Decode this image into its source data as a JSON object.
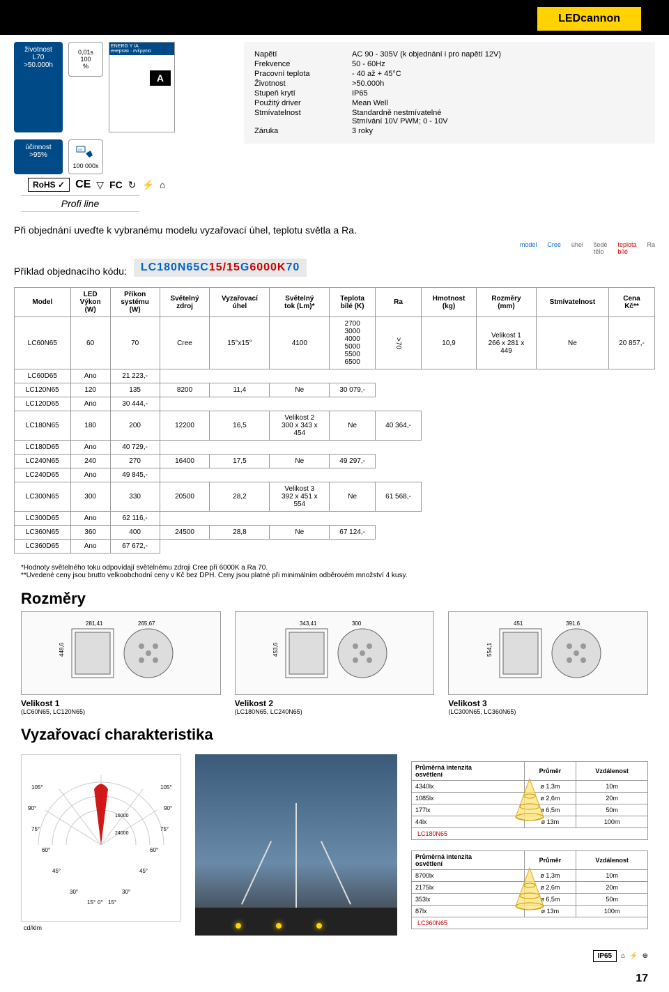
{
  "header": {
    "title": "LEDcannon"
  },
  "badges": {
    "life_label": "životnost\nL70\n>50.000h",
    "eff_label": "účinnost\n>95%",
    "speed_label": "0,01s\n100\n%",
    "cycles_label": "100 000x"
  },
  "energy": {
    "top": "ENERG Y IA\nенергия · ενέργεια",
    "class": "A"
  },
  "specs": [
    {
      "label": "Napětí",
      "value": "AC 90 - 305V (k objednání i pro napětí 12V)"
    },
    {
      "label": "Frekvence",
      "value": "50 - 60Hz"
    },
    {
      "label": "Pracovní teplota",
      "value": "- 40 až + 45°C"
    },
    {
      "label": "Životnost",
      "value": ">50.000h"
    },
    {
      "label": "Stupeň krytí",
      "value": "IP65"
    },
    {
      "label": "Použitý driver",
      "value": "Mean Well"
    },
    {
      "label": "Stmívatelnost",
      "value": "Standardně nestmívatelné\nStmívání 10V PWM; 0 - 10V"
    },
    {
      "label": "Záruka",
      "value": "3 roky"
    }
  ],
  "note": "Při objednání uveďte k vybranému modelu vyzařovací úhel, teplotu světla a Ra.",
  "order_label": "Příklad objednacího kódu:",
  "order_code": {
    "p1": "LC180N65C",
    "p2": "15/15",
    "p3": "G",
    "p4": "6000K",
    "p5": "70"
  },
  "legend": [
    "model",
    "Cree",
    "úhel",
    "šedé\ntělo",
    "teplota\nbílé",
    "Ra"
  ],
  "profi": "Profi line",
  "certs": [
    "RoHS ✓",
    "CE",
    "▽",
    "FC",
    "↻",
    "⚡",
    "⌂"
  ],
  "table": {
    "headers": [
      "Model",
      "LED\nVýkon\n(W)",
      "Příkon\nsystému\n(W)",
      "Světelný\nzdroj",
      "Vyzařovací\núhel",
      "Světelný\ntok (Lm)*",
      "Teplota\nbílé (K)",
      "Ra",
      "Hmotnost\n(kg)",
      "Rozměry\n(mm)",
      "Stmívatelnost",
      "Cena\nKč**"
    ],
    "models": [
      "LC60N65",
      "LC60D65",
      "LC120N65",
      "LC120D65",
      "LC180N65",
      "LC180D65",
      "LC240N65",
      "LC240D65",
      "LC300N65",
      "LC300D65",
      "LC360N65",
      "LC360D65"
    ],
    "watt_pairs": [
      [
        "60",
        "70"
      ],
      [
        "120",
        "135"
      ],
      [
        "180",
        "200"
      ],
      [
        "240",
        "270"
      ],
      [
        "300",
        "330"
      ],
      [
        "360",
        "400"
      ]
    ],
    "zdroj": "Cree",
    "uhel": "15°x15°",
    "lumens": [
      "4100",
      "8200",
      "12200",
      "16400",
      "20500",
      "24500"
    ],
    "teplota": "2700\n3000\n4000\n5000\n5500\n6500",
    "ra": ">70",
    "weights": [
      "10,9",
      "11,4",
      "16,5",
      "17,5",
      "28,2",
      "28,8"
    ],
    "sizes": [
      "Velikost 1\n266 x 281 x\n449",
      "Velikost 2\n300 x 343 x\n454",
      "Velikost 3\n392 x 451 x\n554"
    ],
    "dim_alt": [
      "Ne",
      "Ano"
    ],
    "prices": [
      "20 857,-",
      "21 223,-",
      "30 079,-",
      "30 444,-",
      "40 364,-",
      "40 729,-",
      "49 297,-",
      "49 845,-",
      "61 568,-",
      "62 116,-",
      "67 124,-",
      "67 672,-"
    ]
  },
  "notes_text": [
    "*Hodnoty světelného toku odpovídají světelnému zdroji Cree při 6000K a Ra 70.",
    "**Uvedené ceny jsou brutto velkoobchodní ceny v Kč bez DPH. Ceny jsou platné při minimálním odběrovém množství 4 kusy."
  ],
  "h2_dims": "Rozměry",
  "dims": [
    {
      "w": "281,41",
      "h": "448,6",
      "d": "265,67"
    },
    {
      "w": "343,41",
      "h": "453,6",
      "d": "300"
    },
    {
      "w": "451",
      "h": "554,1",
      "d": "391,6"
    }
  ],
  "sizes": [
    {
      "title": "Velikost 1",
      "sub": "(LC60N65, LC120N65)"
    },
    {
      "title": "Velikost 2",
      "sub": "(LC180N65, LC240N65)"
    },
    {
      "title": "Velikost 3",
      "sub": "(LC300N65, LC360N65)"
    }
  ],
  "h2_char": "Vyzařovací charakteristika",
  "polar": {
    "angles": [
      "105°",
      "90°",
      "75°",
      "60°",
      "45°",
      "30°",
      "15°",
      "0°"
    ],
    "rings": [
      "16000",
      "24000"
    ],
    "unit": "cd/klm"
  },
  "intensity_tables": [
    {
      "headers": [
        "Průměrná intenzita\nosvětlení",
        "Průměr",
        "Vzdálenost"
      ],
      "rows": [
        [
          "4340lx",
          "ø 1,3m",
          "10m"
        ],
        [
          "1085lx",
          "ø 2,6m",
          "20m"
        ],
        [
          "177lx",
          "ø 6,5m",
          "50m"
        ],
        [
          "44lx",
          "ø 13m",
          "100m"
        ]
      ],
      "model": "LC180N65"
    },
    {
      "headers": [
        "Průměrná intenzita\nosvětlení",
        "Průměr",
        "Vzdálenost"
      ],
      "rows": [
        [
          "8700lx",
          "ø 1,3m",
          "10m"
        ],
        [
          "2175lx",
          "ø 2,6m",
          "20m"
        ],
        [
          "353lx",
          "ø 6,5m",
          "50m"
        ],
        [
          "87lx",
          "ø 13m",
          "100m"
        ]
      ],
      "model": "LC360N65"
    }
  ],
  "footer": {
    "ip": "IP65",
    "page": "17"
  }
}
